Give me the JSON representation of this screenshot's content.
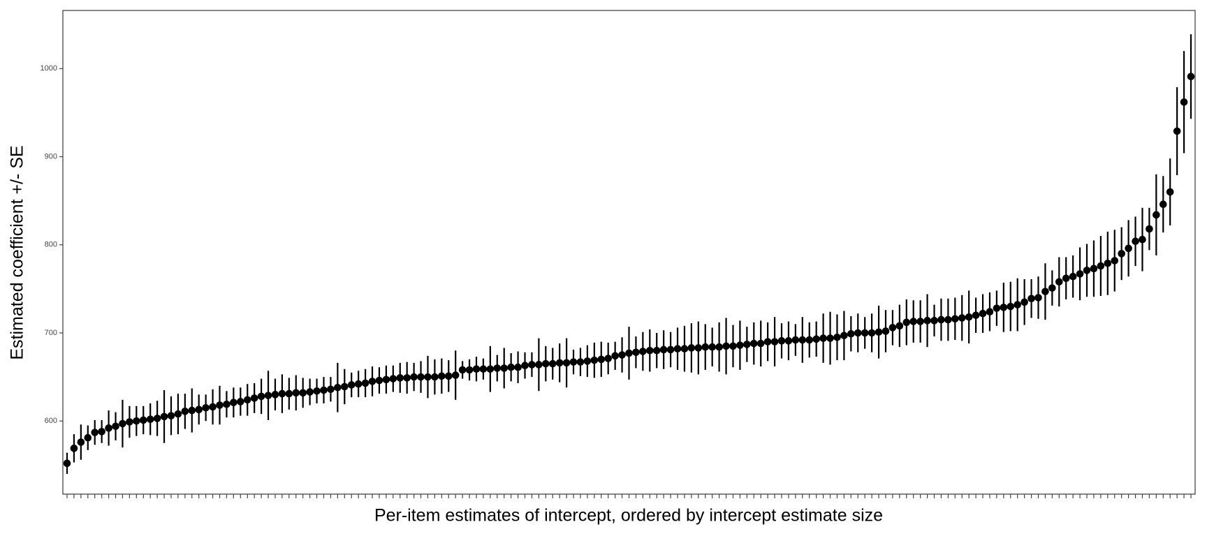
{
  "chart_data": {
    "type": "errorbar-dot",
    "xlabel": "Per-item estimates of intercept, ordered by intercept estimate size",
    "ylabel": "Estimated coefficient +/- SE",
    "color": "#000000",
    "ylim": [
      517,
      1066
    ],
    "yticks": [
      600,
      700,
      800,
      900,
      1000
    ],
    "values": [
      552,
      569,
      576,
      581,
      587,
      588,
      592,
      594,
      597,
      599,
      600,
      601,
      602,
      603,
      605,
      606,
      608,
      611,
      612,
      613,
      615,
      616,
      618,
      619,
      621,
      622,
      624,
      626,
      628,
      629,
      630,
      631,
      631,
      632,
      632,
      633,
      634,
      635,
      636,
      638,
      639,
      641,
      642,
      643,
      645,
      646,
      647,
      648,
      649,
      649,
      650,
      650,
      650,
      650,
      651,
      651,
      652,
      658,
      658,
      659,
      659,
      659,
      660,
      660,
      661,
      661,
      663,
      664,
      664,
      665,
      665,
      666,
      666,
      667,
      667,
      668,
      669,
      670,
      671,
      674,
      675,
      677,
      678,
      679,
      680,
      680,
      681,
      681,
      682,
      682,
      683,
      683,
      684,
      684,
      684,
      685,
      685,
      686,
      687,
      688,
      688,
      690,
      690,
      691,
      691,
      692,
      692,
      692,
      693,
      694,
      694,
      695,
      697,
      699,
      700,
      700,
      700,
      701,
      702,
      706,
      708,
      712,
      713,
      713,
      714,
      714,
      715,
      715,
      716,
      717,
      718,
      720,
      722,
      724,
      728,
      729,
      730,
      732,
      735,
      739,
      740,
      747,
      751,
      758,
      762,
      764,
      767,
      771,
      773,
      776,
      779,
      782,
      790,
      796,
      804,
      806,
      818,
      834,
      846,
      860,
      929,
      962,
      991
    ],
    "errors": [
      12,
      16,
      20,
      14,
      14,
      13,
      20,
      16,
      27,
      18,
      17,
      16,
      18,
      20,
      30,
      22,
      23,
      20,
      25,
      17,
      15,
      20,
      22,
      15,
      17,
      16,
      18,
      17,
      20,
      28,
      18,
      22,
      18,
      20,
      17,
      15,
      14,
      15,
      14,
      28,
      20,
      14,
      15,
      16,
      17,
      15,
      16,
      15,
      17,
      18,
      16,
      18,
      24,
      20,
      20,
      18,
      28,
      10,
      12,
      14,
      12,
      26,
      15,
      23,
      16,
      18,
      15,
      14,
      30,
      20,
      18,
      22,
      28,
      14,
      16,
      18,
      20,
      20,
      18,
      16,
      20,
      30,
      18,
      22,
      24,
      20,
      22,
      20,
      24,
      26,
      28,
      30,
      26,
      22,
      28,
      32,
      24,
      28,
      20,
      24,
      26,
      22,
      28,
      20,
      22,
      18,
      26,
      20,
      20,
      28,
      30,
      26,
      28,
      20,
      22,
      18,
      22,
      30,
      24,
      20,
      24,
      26,
      24,
      24,
      30,
      18,
      24,
      24,
      24,
      26,
      30,
      20,
      22,
      22,
      20,
      28,
      28,
      30,
      26,
      22,
      24,
      32,
      20,
      28,
      24,
      24,
      30,
      30,
      32,
      34,
      36,
      35,
      30,
      32,
      28,
      36,
      24,
      46,
      32,
      38,
      50,
      58,
      48
    ]
  }
}
